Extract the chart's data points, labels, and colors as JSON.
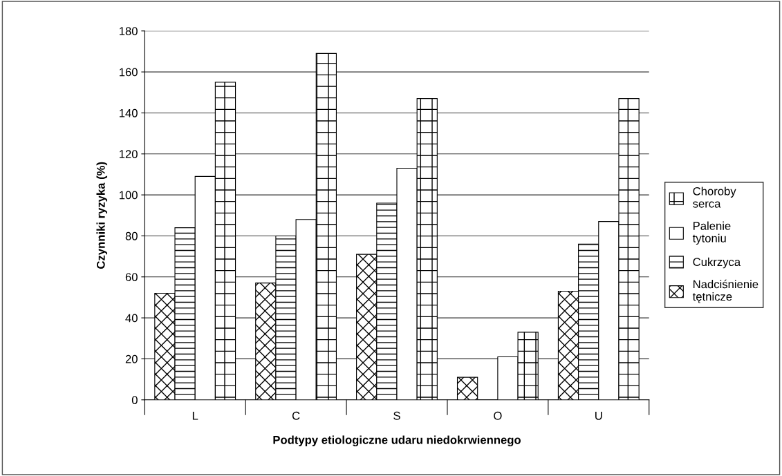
{
  "chart_data": {
    "type": "bar",
    "xlabel": "Podtypy etiologiczne udaru niedokrwiennego",
    "ylabel": "Czynniki ryzyka (%)",
    "categories": [
      "L",
      "C",
      "S",
      "O",
      "U"
    ],
    "series": [
      {
        "name": "Nadciśnienie\ntętnicze",
        "color": "#000000",
        "values": [
          52,
          57,
          71,
          11,
          53
        ]
      },
      {
        "name": "Cukrzyca",
        "color": "#000000",
        "values": [
          84,
          80,
          96,
          0,
          76
        ]
      },
      {
        "name": "Palenie\ntytoniu",
        "color": "#ffffff",
        "values": [
          109,
          88,
          113,
          21,
          87
        ]
      },
      {
        "name": "Choroby\nserca",
        "color": "#000000",
        "values": [
          155,
          169,
          147,
          33,
          147
        ]
      }
    ],
    "ylim": [
      0,
      180
    ],
    "yticks": [
      0,
      20,
      40,
      60,
      80,
      100,
      120,
      140,
      160,
      180
    ],
    "grid": "y",
    "legend": "right"
  }
}
